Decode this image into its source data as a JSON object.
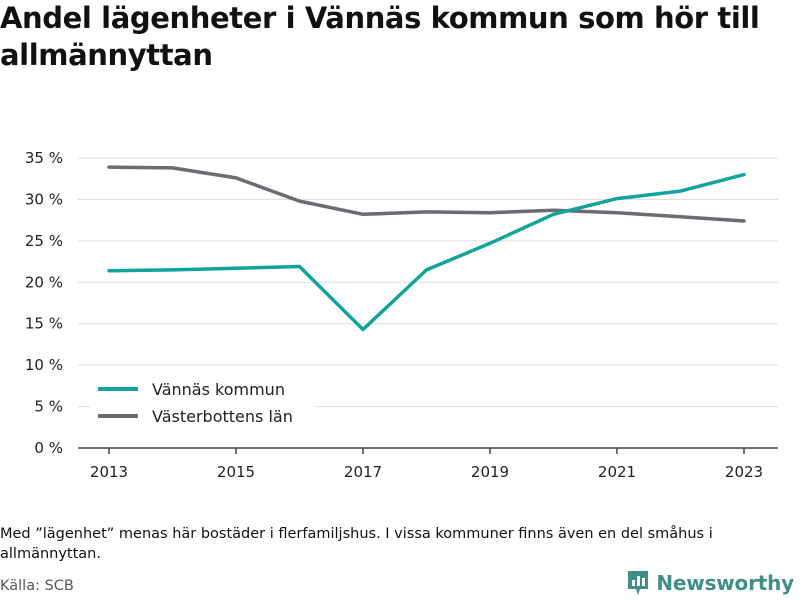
{
  "title": "Andel lägenheter i Vännäs kommun som hör till allmännyttan",
  "note": "Med ”lägenhet” menas här bostäder i flerfamiljshus. I vissa kommuner finns även en del småhus i allmännyttan.",
  "source": "Källa: SCB",
  "brand": {
    "name": "Newsworthy",
    "icon": "newsworthy-logo-icon",
    "color": "#3f8f87"
  },
  "chart_data": {
    "type": "line",
    "title": "Andel lägenheter i Vännäs kommun som hör till allmännyttan",
    "xlabel": "",
    "ylabel": "",
    "x": [
      2013,
      2014,
      2015,
      2016,
      2017,
      2018,
      2019,
      2020,
      2021,
      2022,
      2023
    ],
    "x_ticks": [
      "2013",
      "2015",
      "2017",
      "2019",
      "2021",
      "2023"
    ],
    "y_ticks": [
      "0 %",
      "5 %",
      "10 %",
      "15 %",
      "20 %",
      "25 %",
      "30 %",
      "35 %"
    ],
    "ylim": [
      0,
      35
    ],
    "grid": true,
    "legend_position": "bottom-left",
    "series": [
      {
        "name": "Vännäs kommun",
        "color": "#12a39a",
        "values": [
          21.4,
          21.5,
          21.7,
          21.9,
          14.3,
          21.5,
          24.7,
          28.2,
          30.1,
          31.0,
          33.0
        ]
      },
      {
        "name": "Västerbottens län",
        "color": "#6b6b72",
        "values": [
          33.9,
          33.8,
          32.6,
          29.8,
          28.2,
          28.5,
          28.4,
          28.7,
          28.4,
          27.9,
          27.4
        ]
      }
    ]
  }
}
